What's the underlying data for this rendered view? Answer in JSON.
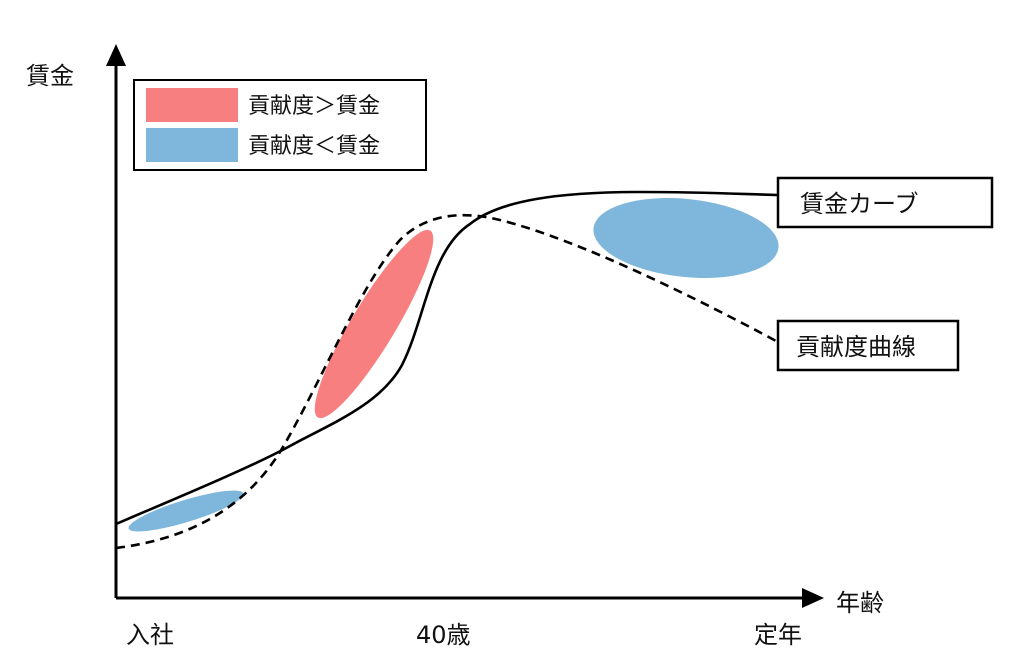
{
  "axes": {
    "y_label": "賃金",
    "x_label": "年齢",
    "x_ticks": [
      "入社",
      "40歳",
      "定年"
    ]
  },
  "legend": {
    "items": [
      {
        "label": "貢献度＞賃金",
        "color": "#f87f80"
      },
      {
        "label": "貢献度＜賃金",
        "color": "#7eb6dc"
      }
    ]
  },
  "callouts": {
    "wage_curve": "賃金カーブ",
    "contribution_curve": "貢献度曲線"
  },
  "colors": {
    "line": "#000000",
    "surplus_region": "#f87f80",
    "deficit_region": "#7eb6dc"
  }
}
